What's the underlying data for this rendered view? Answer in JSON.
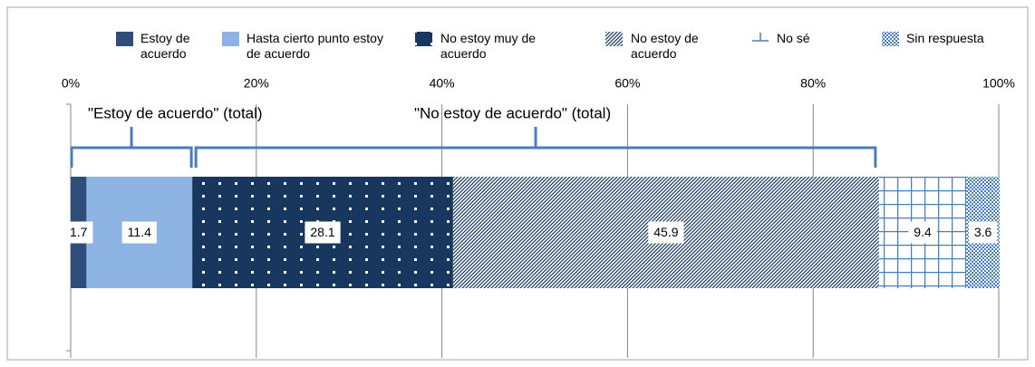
{
  "chart_data": {
    "type": "stacked-bar-100",
    "series": [
      {
        "name": "Estoy de acuerdo",
        "color": "#2e4d7b",
        "pattern": "solid",
        "values": [
          1.7
        ]
      },
      {
        "name": "Hasta cierto punto estoy de acuerdo",
        "color": "#8db3e2",
        "pattern": "solid",
        "values": [
          11.4
        ]
      },
      {
        "name": "No estoy muy de acuerdo",
        "color": "#17375e",
        "pattern": "dots",
        "values": [
          28.1
        ]
      },
      {
        "name": "No estoy de acuerdo",
        "color": "#17375e",
        "pattern": "diagonal",
        "values": [
          45.9
        ]
      },
      {
        "name": "No sé",
        "color": "#4a7ebb",
        "pattern": "grid",
        "values": [
          9.4
        ]
      },
      {
        "name": "Sin respuesta",
        "color": "#4a7ebb",
        "pattern": "checker",
        "values": [
          3.6
        ]
      }
    ],
    "annotations": [
      "\"Estoy de acuerdo\" (total)",
      "\"No estoy de acuerdo\" (total)"
    ],
    "xlim": [
      0,
      100
    ],
    "xticks": [
      {
        "value": 0,
        "label": "0%"
      },
      {
        "value": 20,
        "label": "20%"
      },
      {
        "value": 40,
        "label": "40%"
      },
      {
        "value": 60,
        "label": "60%"
      },
      {
        "value": 80,
        "label": "80%"
      },
      {
        "value": 100,
        "label": "100%"
      }
    ],
    "grid": true
  }
}
